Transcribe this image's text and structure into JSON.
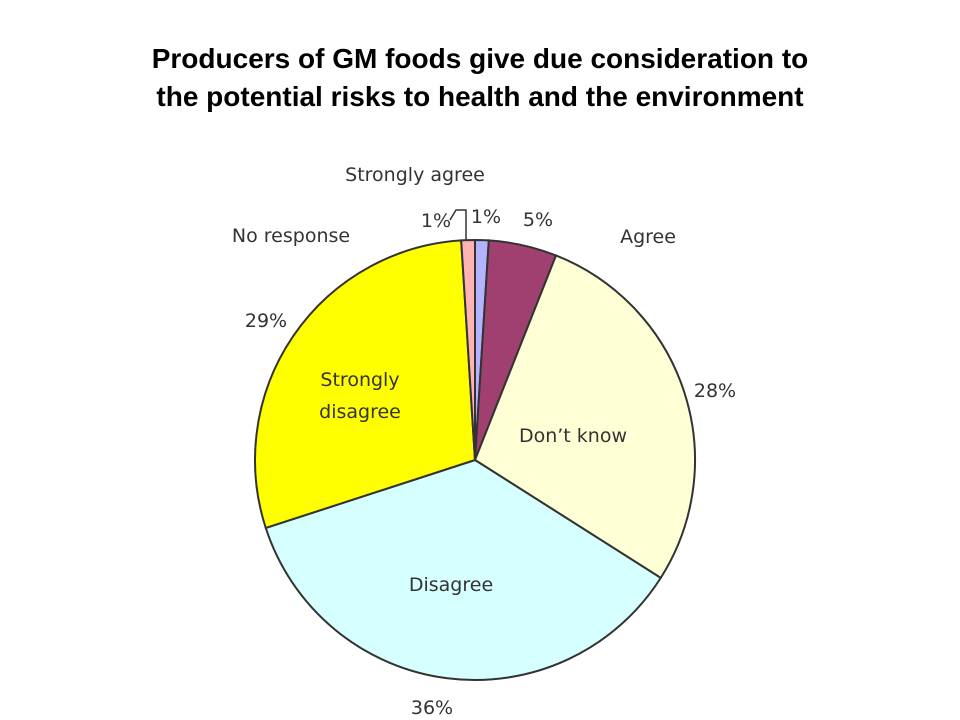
{
  "title": {
    "line1": "Producers of GM foods give due consideration to",
    "line2": "the potential risks to health and the environment"
  },
  "chart_data": {
    "type": "pie",
    "start": "top, clockwise",
    "slices": [
      {
        "label": "Strongly agree",
        "value": 1,
        "pct_label": "1%",
        "color": "#b3b3ff"
      },
      {
        "label": "Agree",
        "value": 5,
        "pct_label": "5%",
        "color": "#a04070"
      },
      {
        "label": "Don’t know",
        "value": 28,
        "pct_label": "28%",
        "color": "#ffffd6"
      },
      {
        "label": "Disagree",
        "value": 36,
        "pct_label": "36%",
        "color": "#d6ffff"
      },
      {
        "label": "Strongly\ndisagree",
        "value": 29,
        "pct_label": "29%",
        "color": "#ffff00"
      },
      {
        "label": "No response",
        "value": 1,
        "pct_label": "1%",
        "color": "#ffb3b3"
      }
    ]
  }
}
